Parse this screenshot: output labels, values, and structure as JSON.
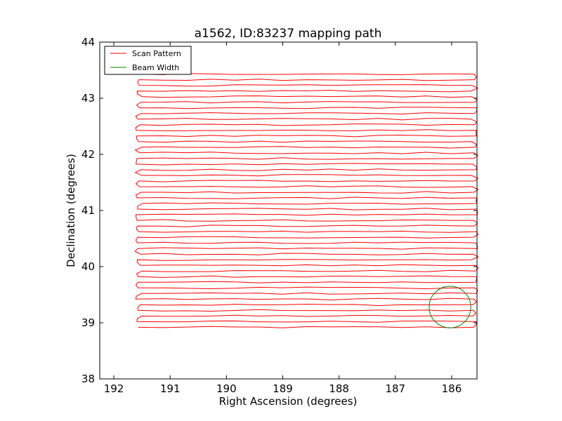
{
  "chart_data": {
    "type": "line",
    "title": "a1562, ID:83237 mapping path",
    "xlabel": "Right Ascension (degrees)",
    "ylabel": "Declination (degrees)",
    "xlim": [
      192.25,
      185.55
    ],
    "ylim": [
      38,
      44
    ],
    "x_axis_reversed": true,
    "xticks": [
      192,
      191,
      190,
      189,
      188,
      187,
      186
    ],
    "yticks": [
      38,
      39,
      40,
      41,
      42,
      43,
      44
    ],
    "grid": false,
    "legend": {
      "placement": "top-left",
      "entries": [
        "Scan Pattern",
        "Beam Width"
      ]
    },
    "series": [
      {
        "name": "Scan Pattern",
        "color": "#ff0000",
        "style": "boustrophedon raster",
        "ra_min": 191.55,
        "ra_max": 185.6,
        "dec_start": 38.92,
        "dec_end": 43.43,
        "num_scan_legs": 46
      },
      {
        "name": "Beam Width",
        "color": "#008000",
        "shape": "circle",
        "center": [
          186.03,
          39.28
        ],
        "radius_deg": 0.37
      }
    ]
  }
}
